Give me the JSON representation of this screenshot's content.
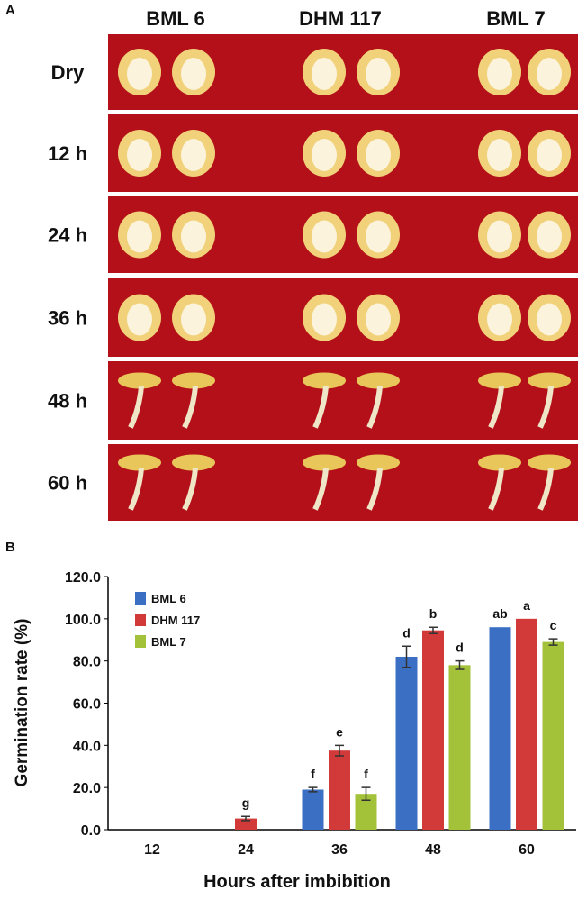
{
  "figure": {
    "panel_a": {
      "label": "A",
      "columns": [
        "BML 6",
        "DHM 117",
        "BML 7"
      ],
      "rows": [
        "Dry",
        "12 h",
        "24 h",
        "36 h",
        "48 h",
        "60 h"
      ]
    },
    "panel_b_label": "B"
  },
  "chart_data": {
    "type": "bar",
    "ylabel": "Germination rate (%)",
    "xlabel": "Hours after imbibition",
    "categories": [
      "12",
      "24",
      "36",
      "48",
      "60"
    ],
    "series": [
      {
        "name": "BML 6",
        "color": "#3a6fc4",
        "values": [
          0,
          0,
          19,
          82,
          96
        ],
        "errors": [
          0,
          0,
          1,
          5,
          0
        ],
        "letters": [
          null,
          null,
          "f",
          "d",
          "ab"
        ]
      },
      {
        "name": "DHM 117",
        "color": "#d23a3a",
        "values": [
          0,
          5.3,
          37.5,
          94.5,
          100
        ],
        "errors": [
          0,
          1,
          2.5,
          1.5,
          0
        ],
        "letters": [
          null,
          "g",
          "e",
          "b",
          "a"
        ]
      },
      {
        "name": "BML 7",
        "color": "#a3c23a",
        "values": [
          0,
          0,
          17,
          78,
          89
        ],
        "errors": [
          0,
          0,
          3,
          2,
          1.5
        ],
        "letters": [
          null,
          null,
          "f",
          "d",
          "c"
        ]
      }
    ],
    "ylim": [
      0,
      120
    ],
    "yticks": [
      {
        "value": 0,
        "label": "0.0"
      },
      {
        "value": 20,
        "label": "20.0"
      },
      {
        "value": 40,
        "label": "40.0"
      },
      {
        "value": 60,
        "label": "60.0"
      },
      {
        "value": 80,
        "label": "80.0"
      },
      {
        "value": 100,
        "label": "100.0"
      },
      {
        "value": 120,
        "label": "120.0"
      }
    ],
    "legend": "upper left",
    "grid": false
  }
}
